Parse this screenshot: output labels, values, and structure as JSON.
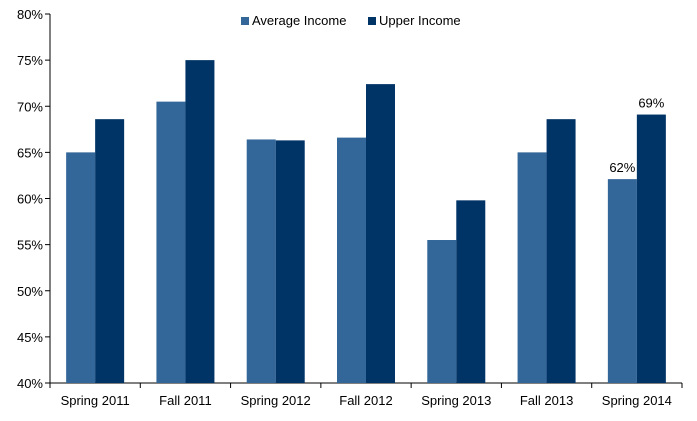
{
  "chart_data": {
    "type": "bar",
    "categories": [
      "Spring 2011",
      "Fall 2011",
      "Spring 2012",
      "Fall 2012",
      "Spring 2013",
      "Fall 2013",
      "Spring 2014"
    ],
    "series": [
      {
        "name": "Average Income",
        "color": "#336699",
        "values": [
          65.0,
          70.5,
          66.4,
          66.6,
          55.5,
          65.0,
          62.1
        ]
      },
      {
        "name": "Upper Income",
        "color": "#003366",
        "values": [
          68.6,
          75.0,
          66.3,
          72.4,
          59.8,
          68.6,
          69.1
        ]
      }
    ],
    "ylim": [
      40,
      80
    ],
    "yticks": [
      40,
      45,
      50,
      55,
      60,
      65,
      70,
      75,
      80
    ],
    "ytick_labels": [
      "40%",
      "45%",
      "50%",
      "55%",
      "60%",
      "65%",
      "70%",
      "75%",
      "80%"
    ],
    "annotations": [
      {
        "series": 0,
        "category": 6,
        "text": "62%"
      },
      {
        "series": 1,
        "category": 6,
        "text": "69%"
      }
    ],
    "legend_position": "top-center",
    "grid": false
  }
}
